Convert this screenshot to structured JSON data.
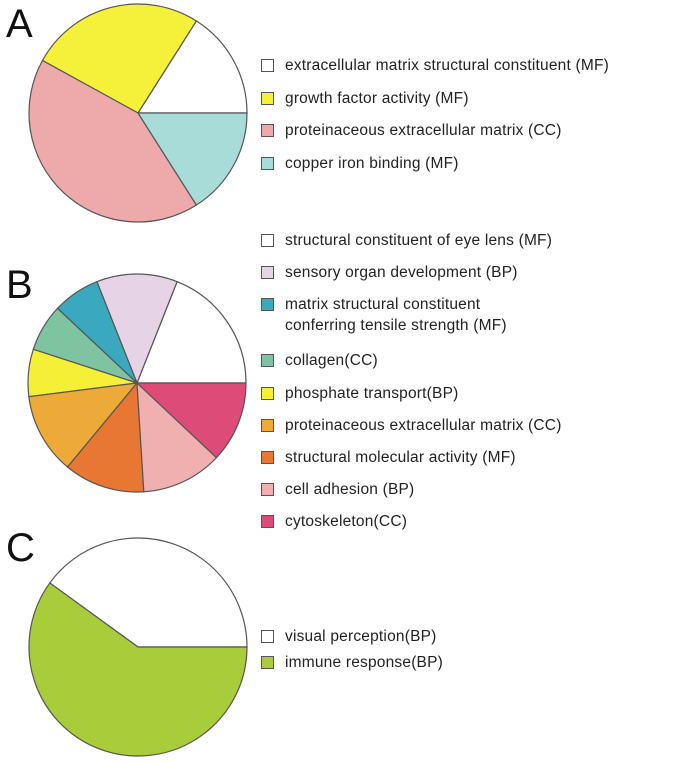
{
  "panels": [
    {
      "letter": "A"
    },
    {
      "letter": "B"
    },
    {
      "letter": "C"
    }
  ],
  "chart_data": [
    {
      "type": "pie",
      "panel": "A",
      "series": [
        {
          "name": "extracellular matrix structural constituent (MF)",
          "value": 16,
          "color": "#ffffff"
        },
        {
          "name": "growth factor activity (MF)",
          "value": 26,
          "color": "#f5f03a"
        },
        {
          "name": "proteinaceous extracellular matrix (CC)",
          "value": 42,
          "color": "#eeaaaa"
        },
        {
          "name": "copper iron binding (MF)",
          "value": 16,
          "color": "#a8dcd8"
        }
      ],
      "slice_order": [
        0,
        1,
        2,
        3
      ]
    },
    {
      "type": "pie",
      "panel": "B",
      "series": [
        {
          "name": "structural constituent of eye lens (MF)",
          "value": 19,
          "color": "#ffffff"
        },
        {
          "name": "sensory organ development (BP)",
          "value": 12,
          "color": "#e6d3e6"
        },
        {
          "name": "matrix structural constituent conferring tensile strength (MF)",
          "value": 7,
          "color": "#3aa9bf"
        },
        {
          "name": "collagen(CC)",
          "value": 7,
          "color": "#7fc4a0"
        },
        {
          "name": "phosphate transport(BP)",
          "value": 7,
          "color": "#f5ef36"
        },
        {
          "name": "proteinaceous extracellular matrix (CC)",
          "value": 12,
          "color": "#eeaa38"
        },
        {
          "name": "structural molecular activity (MF)",
          "value": 12,
          "color": "#e77733"
        },
        {
          "name": "cell adhesion (BP)",
          "value": 12,
          "color": "#f0b0b0"
        },
        {
          "name": "cytoskeleton(CC)",
          "value": 12,
          "color": "#dd4c79"
        }
      ]
    },
    {
      "type": "pie",
      "panel": "C",
      "series": [
        {
          "name": "visual perception(BP)",
          "value": 40,
          "color": "#ffffff"
        },
        {
          "name": "immune response(BP)",
          "value": 60,
          "color": "#a8cc3a"
        }
      ]
    }
  ],
  "legend_b_wrap": {
    "line1": "matrix structural constituent",
    "line2": "conferring tensile strength (MF)"
  }
}
